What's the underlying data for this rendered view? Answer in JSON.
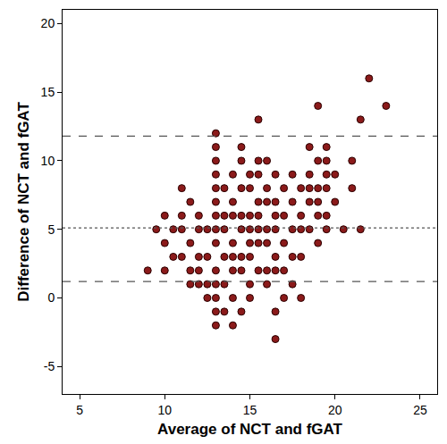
{
  "chart_data": {
    "type": "scatter",
    "x_label": "Average of NCT and fGAT",
    "y_label": "Difference of NCT and fGAT",
    "color": "#8b1a1a",
    "marker": "circle",
    "grid": false,
    "xlim": [
      4,
      26
    ],
    "ylim": [
      -7,
      21
    ],
    "xticks": [
      5,
      10,
      15,
      20,
      25
    ],
    "yticks": [
      -5,
      0,
      5,
      10,
      15,
      20
    ],
    "x": [
      9,
      9.5,
      10,
      10,
      10,
      10.5,
      10.5,
      11,
      11,
      11,
      11,
      11.5,
      11.5,
      11.5,
      11.5,
      12,
      12,
      12,
      12,
      12,
      12.5,
      12.5,
      12.5,
      12.5,
      13,
      13,
      13,
      13,
      13,
      13,
      13,
      13,
      13,
      13,
      13,
      13,
      13,
      13,
      13.5,
      13.5,
      13.5,
      13.5,
      13.5,
      13.5,
      14,
      14,
      14,
      14,
      14,
      14,
      14,
      14,
      14.5,
      14.5,
      14.5,
      14.5,
      14.5,
      14.5,
      14.5,
      14.5,
      15,
      15,
      15,
      15,
      15,
      15,
      15,
      15,
      15.5,
      15.5,
      15.5,
      15.5,
      15.5,
      15.5,
      15.5,
      15.5,
      16,
      16,
      16,
      16,
      16,
      16,
      16,
      16.5,
      16.5,
      16.5,
      16.5,
      16.5,
      16.5,
      16.5,
      16.5,
      17,
      17,
      17,
      17,
      17,
      17.5,
      17.5,
      17.5,
      17.5,
      17.5,
      18,
      18,
      18,
      18,
      18,
      18.5,
      18.5,
      18.5,
      18.5,
      18.5,
      19,
      19,
      19,
      19,
      19,
      19,
      19.5,
      19.5,
      19.5,
      19.5,
      19.5,
      19.5,
      20,
      20,
      20.5,
      21,
      21,
      21.5,
      21.5,
      22,
      23
    ],
    "y": [
      2,
      5,
      6,
      4,
      2,
      5,
      3,
      8,
      6,
      5,
      3,
      7,
      4,
      2,
      1,
      6,
      5,
      3,
      2,
      1,
      5,
      3,
      1,
      0,
      12,
      11,
      10,
      9,
      8,
      7,
      6,
      5,
      4,
      2,
      1,
      0,
      -1,
      -2,
      8,
      6,
      5,
      3,
      1,
      -1,
      9,
      7,
      6,
      4,
      3,
      2,
      0,
      -2,
      11,
      10,
      8,
      6,
      5,
      3,
      2,
      -1,
      9,
      8,
      6,
      5,
      4,
      3,
      1,
      0,
      13,
      10,
      9,
      7,
      6,
      5,
      4,
      2,
      10,
      8,
      7,
      5,
      4,
      2,
      1,
      9,
      7,
      6,
      5,
      3,
      2,
      -1,
      -3,
      8,
      6,
      4,
      2,
      0,
      9,
      7,
      5,
      3,
      1,
      8,
      6,
      5,
      3,
      0,
      11,
      9,
      8,
      7,
      5,
      14,
      10,
      8,
      7,
      6,
      4,
      11,
      10,
      9,
      8,
      6,
      5,
      9,
      7,
      5,
      10,
      8,
      13,
      5,
      16,
      14
    ],
    "hlines": [
      {
        "y": 11.8,
        "line_style": "dash"
      },
      {
        "y": 5.1,
        "line_style": "dot"
      },
      {
        "y": 1.2,
        "line_style": "dash"
      }
    ]
  }
}
